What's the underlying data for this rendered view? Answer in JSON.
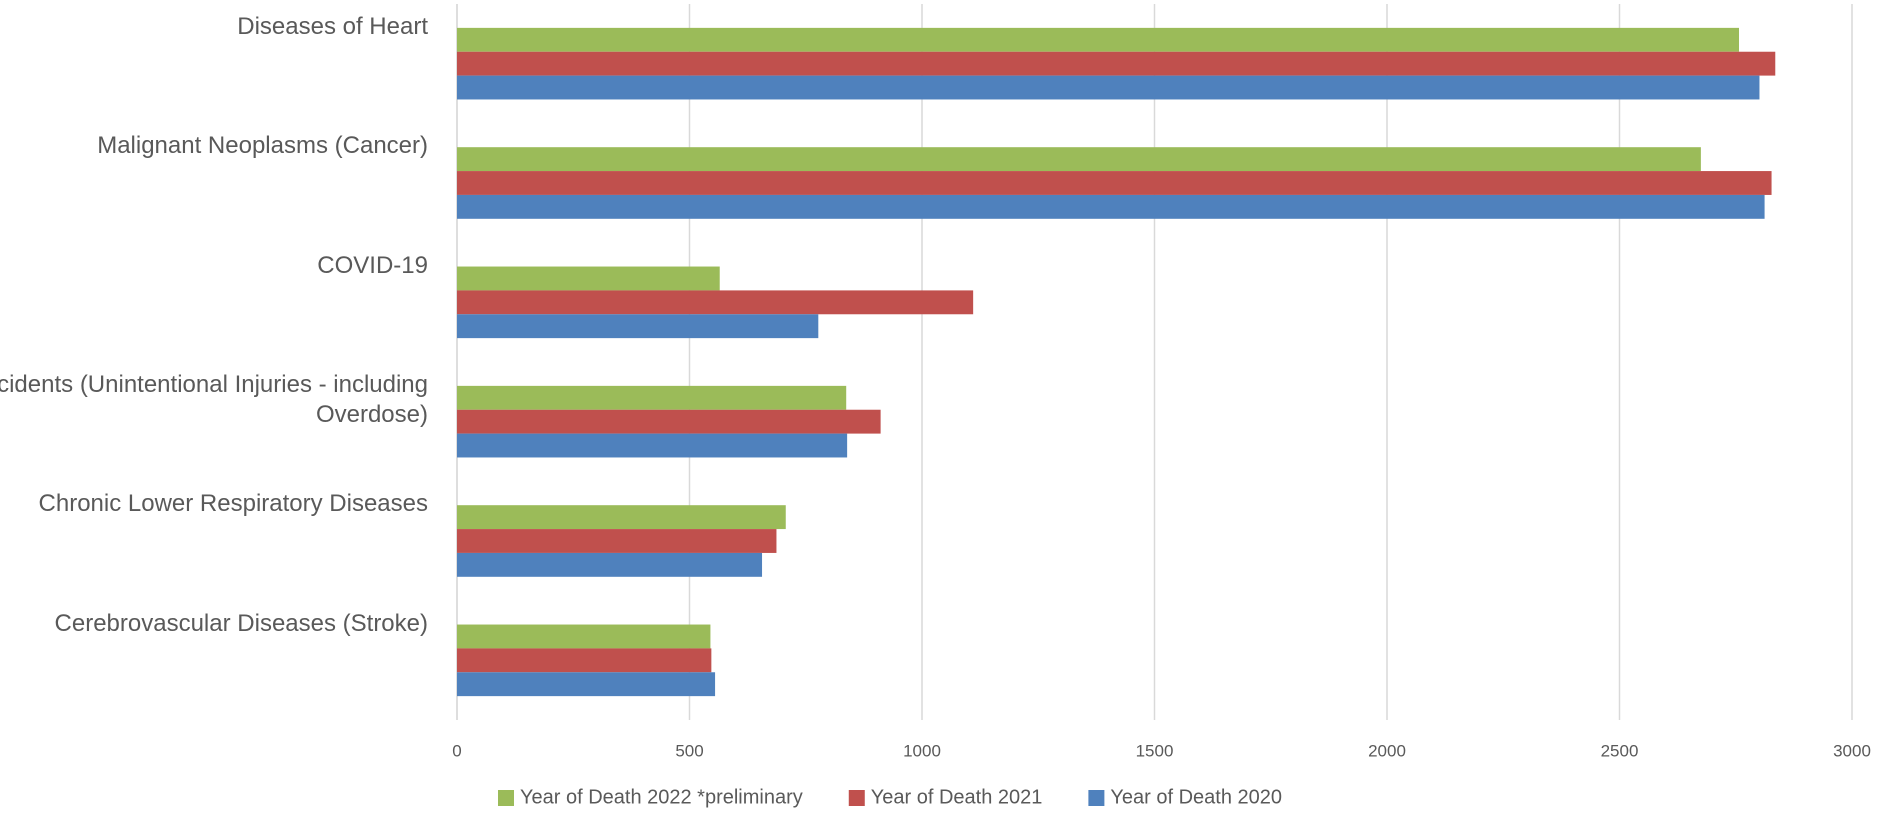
{
  "chart_data": {
    "type": "hbar",
    "categories": [
      "Diseases of Heart",
      "Malignant Neoplasms (Cancer)",
      "COVID-19",
      "Accidents (Unintentional Injuries - including Overdose)",
      "Chronic Lower Respiratory Diseases",
      "Cerebrovascular Diseases (Stroke)"
    ],
    "series": [
      {
        "name": "Year of Death 2022 *preliminary",
        "color": "#9bbb59",
        "values": [
          2757,
          2675,
          565,
          837,
          707,
          545
        ]
      },
      {
        "name": "Year of Death 2021",
        "color": "#c0504d",
        "values": [
          2835,
          2827,
          1110,
          911,
          687,
          547
        ]
      },
      {
        "name": "Year of Death 2020",
        "color": "#4f81bd",
        "values": [
          2801,
          2812,
          777,
          839,
          656,
          555
        ]
      }
    ],
    "xlim": [
      0,
      3000
    ],
    "xticks": [
      0,
      500,
      1000,
      1500,
      2000,
      2500,
      3000
    ],
    "grid": true,
    "legend": "bottom"
  }
}
